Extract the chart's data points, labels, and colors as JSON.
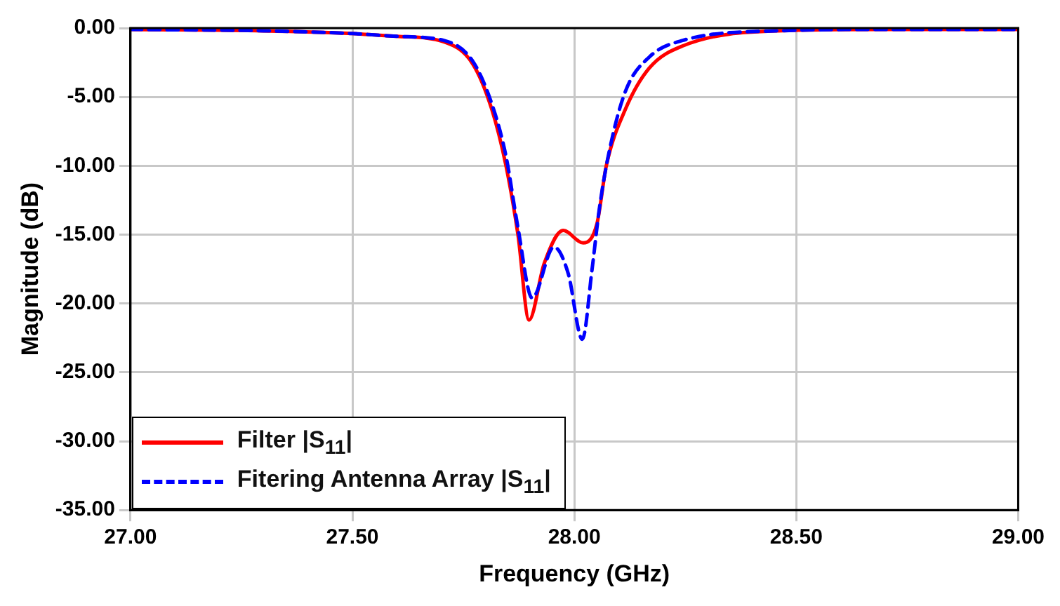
{
  "chart_data": {
    "type": "line",
    "xlabel": "Frequency (GHz)",
    "ylabel": "Magnitude (dB)",
    "xlim": [
      27,
      29
    ],
    "ylim": [
      -35,
      0
    ],
    "xticks": [
      {
        "value": 27,
        "label": "27.00"
      },
      {
        "value": 27.5,
        "label": "27.50"
      },
      {
        "value": 28,
        "label": "28.00"
      },
      {
        "value": 28.5,
        "label": "28.50"
      },
      {
        "value": 29,
        "label": "29.00"
      }
    ],
    "yticks": [
      {
        "value": -35,
        "label": "-35.00"
      },
      {
        "value": -30,
        "label": "-30.00"
      },
      {
        "value": -25,
        "label": "-25.00"
      },
      {
        "value": -20,
        "label": "-20.00"
      },
      {
        "value": -15,
        "label": "-15.00"
      },
      {
        "value": -10,
        "label": "-10.00"
      },
      {
        "value": -5,
        "label": "-5.00"
      },
      {
        "value": 0,
        "label": "0.00"
      }
    ],
    "grid": true,
    "legend": "bottom left",
    "marker": "none",
    "series": [
      {
        "name": "Filter |S$_{11}$|",
        "color": "#ff0000",
        "line_style": "solid",
        "x": [
          27.0,
          27.3,
          27.5,
          27.6,
          27.706,
          27.771,
          27.814,
          27.846,
          27.873,
          27.898,
          27.932,
          27.975,
          28.02,
          28.051,
          28.072,
          28.115,
          28.169,
          28.244,
          28.46,
          28.7,
          29.0
        ],
        "values": [
          -0.1,
          -0.2,
          -0.4,
          -0.6,
          -1.0,
          -2.6,
          -5.9,
          -10.0,
          -15.0,
          -21.2,
          -17.1,
          -14.7,
          -15.6,
          -14.2,
          -10.0,
          -5.9,
          -2.9,
          -1.3,
          -0.2,
          -0.1,
          -0.1
        ]
      },
      {
        "name": "Fitering Antenna Array |S$_{11}$|",
        "color": "#0000ff",
        "line_style": "dashed",
        "x": [
          27.0,
          27.3,
          27.5,
          27.6,
          27.706,
          27.771,
          27.814,
          27.846,
          27.873,
          27.905,
          27.954,
          27.986,
          28.018,
          28.04,
          28.056,
          28.077,
          28.115,
          28.169,
          28.244,
          28.46,
          28.7,
          29.0
        ],
        "values": [
          -0.1,
          -0.2,
          -0.4,
          -0.6,
          -0.9,
          -2.4,
          -5.5,
          -9.3,
          -14.5,
          -19.6,
          -15.9,
          -17.8,
          -22.6,
          -17.5,
          -13.2,
          -9.2,
          -4.6,
          -2.1,
          -0.9,
          -0.2,
          -0.1,
          -0.1
        ]
      }
    ]
  }
}
